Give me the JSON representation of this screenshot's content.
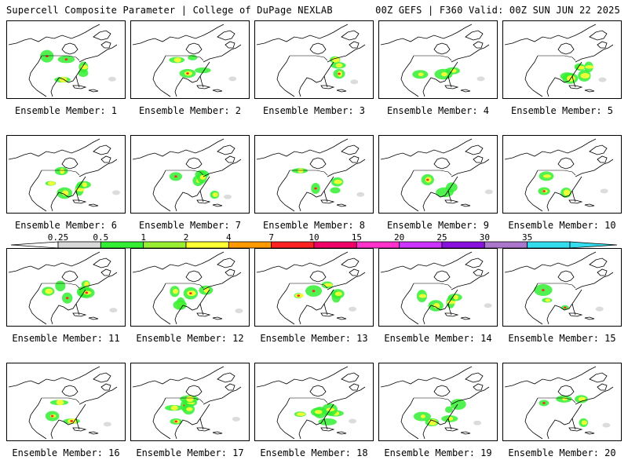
{
  "header": {
    "left": "Supercell Composite Parameter | College of DuPage NEXLAB",
    "right": "00Z GEFS | F360 Valid: 00Z SUN JUN 22 2025"
  },
  "members": [
    {
      "label": "Ensemble Member: 1"
    },
    {
      "label": "Ensemble Member: 2"
    },
    {
      "label": "Ensemble Member: 3"
    },
    {
      "label": "Ensemble Member: 4"
    },
    {
      "label": "Ensemble Member: 5"
    },
    {
      "label": "Ensemble Member: 6"
    },
    {
      "label": "Ensemble Member: 7"
    },
    {
      "label": "Ensemble Member: 8"
    },
    {
      "label": "Ensemble Member: 9"
    },
    {
      "label": "Ensemble Member: 10"
    },
    {
      "label": "Ensemble Member: 11"
    },
    {
      "label": "Ensemble Member: 12"
    },
    {
      "label": "Ensemble Member: 13"
    },
    {
      "label": "Ensemble Member: 14"
    },
    {
      "label": "Ensemble Member: 15"
    },
    {
      "label": "Ensemble Member: 16"
    },
    {
      "label": "Ensemble Member: 17"
    },
    {
      "label": "Ensemble Member: 18"
    },
    {
      "label": "Ensemble Member: 19"
    },
    {
      "label": "Ensemble Member: 20"
    }
  ],
  "colorbar": {
    "ticks": [
      "0.25",
      "0.5",
      "1",
      "2",
      "4",
      "7",
      "10",
      "15",
      "20",
      "25",
      "30",
      "35"
    ],
    "colors": [
      "#d8d8d8",
      "#33ee33",
      "#99ee33",
      "#ffff33",
      "#ff9900",
      "#ff2222",
      "#ee0066",
      "#ff33cc",
      "#cc33ff",
      "#8811dd",
      "#aa77cc",
      "#33ddee"
    ]
  }
}
